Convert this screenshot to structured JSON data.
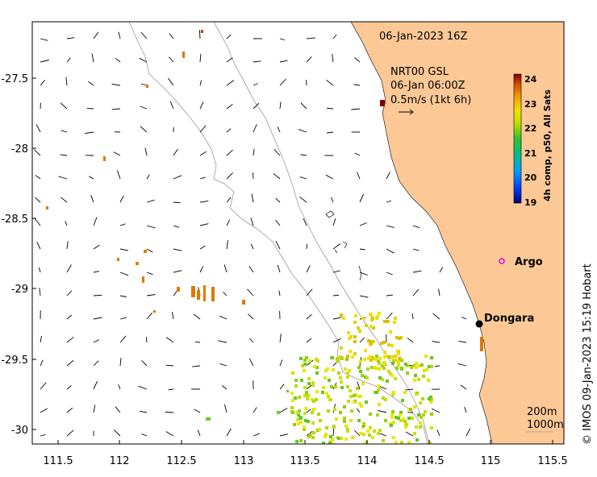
{
  "map": {
    "date_label": "06-Jan-2023 16Z",
    "current": {
      "line1": "NRT00 GSL",
      "line2": "06-Jan 06:00Z",
      "line3": "0.5m/s (1kt 6h)"
    },
    "places": [
      {
        "name": "Argo",
        "lon": 115.1,
        "lat": -28.83,
        "marker": "magenta-circle"
      },
      {
        "name": "Dongara",
        "lon": 114.93,
        "lat": -29.25,
        "marker": "black-dot"
      }
    ],
    "lon_ticks": [
      "111.5",
      "112",
      "112.5",
      "113",
      "113.5",
      "114",
      "114.5",
      "115",
      "115.5"
    ],
    "lat_ticks": [
      "-27.5",
      "-28",
      "-28.5",
      "-29",
      "-29.5",
      "-30"
    ],
    "lon_range": [
      111.28,
      115.65
    ],
    "lat_range": [
      -30.08,
      -27.08
    ],
    "colorbar": {
      "label": "4h comp, p50, All Sats",
      "ticks": [
        "24",
        "23",
        "22",
        "21",
        "20",
        "19"
      ],
      "range": [
        19,
        24
      ]
    },
    "depth_contours": [
      "200m",
      "1000m"
    ],
    "credit": "© IMOS 09-Jan-2023 15:19 Hobart",
    "colors": {
      "land": "#fcc896",
      "contour": "#999999",
      "argo": "#e000e0"
    }
  }
}
